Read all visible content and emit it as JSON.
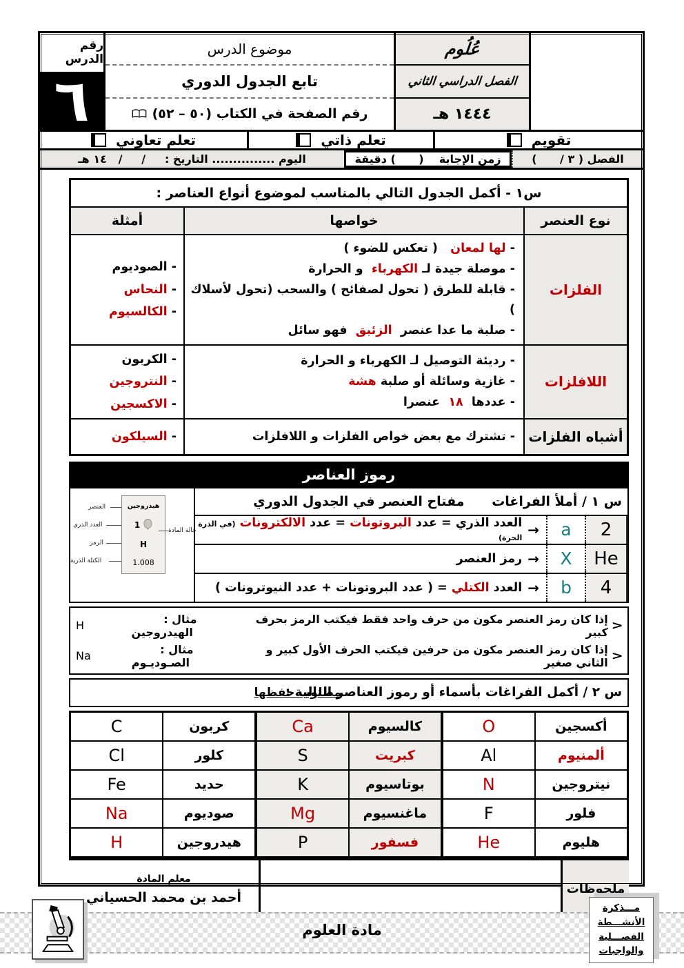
{
  "colors": {
    "answer_red": "#c00000",
    "key_teal": "#17807e"
  },
  "header": {
    "lesson_no_label": "رقم الدرس",
    "lesson_no": "٦",
    "topic_label": "موضوع الدرس",
    "topic_value": "تابع الجدول الدوري",
    "page_ref": "رقم الصفحة في الكتاب (٥٠ – ٥٢)",
    "subject_calligraphy": "عُلُوم",
    "term_calligraphy": "الفصل الدراسي الثاني",
    "year": "١٤٤٤ هـ"
  },
  "modes": {
    "assessment": "تقويم",
    "self": "تعلم ذاتي",
    "cooperative": "تعلم تعاوني"
  },
  "meta": {
    "chapter": "الفصل  ( ٣ /      )",
    "time": "زمن الإجابة    (      ) دقيقة",
    "day_date": "اليوم ............... التاريخ :     /     /   ١٤ هـ"
  },
  "q1": {
    "title": "س١ -  أكمل الجدول التالي بالمناسب لموضوع أنواع العناصر :",
    "headers": {
      "type": "نوع العنصر",
      "props": "خواصها",
      "examples": "أمثلة"
    },
    "rows": [
      {
        "type": [
          {
            "t": "الفلزات",
            "c": "red"
          }
        ],
        "props": [
          [
            {
              "t": "- "
            },
            {
              "t": "لها لمعان",
              "c": "red"
            },
            {
              "t": "   ( تعكس للضوء )"
            }
          ],
          [
            {
              "t": "- موصلة جيدة  لـ "
            },
            {
              "t": "الكهرباء",
              "c": "red"
            },
            {
              "t": "  و الحرارة"
            }
          ],
          [
            {
              "t": "- قابلة للطرق ( تحول لصفائح ) والسحب (تحول لأسلاك )"
            }
          ],
          [
            {
              "t": "- صلبة ما عدا عنصر  "
            },
            {
              "t": "الزئبق",
              "c": "red"
            },
            {
              "t": "  فهو سائل"
            }
          ]
        ],
        "examples": [
          [
            {
              "t": "- الصوديوم"
            }
          ],
          [
            {
              "t": "- "
            },
            {
              "t": "النحاس",
              "c": "red"
            }
          ],
          [
            {
              "t": "- "
            },
            {
              "t": "الكالسيوم",
              "c": "red"
            }
          ]
        ]
      },
      {
        "type": [
          {
            "t": "اللافلزات",
            "c": "red"
          }
        ],
        "props": [
          [
            {
              "t": "- رديئة التوصيل لـ  الكهرباء  و  الحرارة"
            }
          ],
          [
            {
              "t": "- غازية وسائلة  أو صلبة "
            },
            {
              "t": "هشة",
              "c": "red"
            }
          ],
          [
            {
              "t": "- عددها  "
            },
            {
              "t": "١٨",
              "c": "red"
            },
            {
              "t": "  عنصرا"
            }
          ]
        ],
        "examples": [
          [
            {
              "t": "- الكربون"
            }
          ],
          [
            {
              "t": "- "
            },
            {
              "t": "النتروجين",
              "c": "red"
            }
          ],
          [
            {
              "t": "- "
            },
            {
              "t": "الاكسجين",
              "c": "red"
            }
          ]
        ]
      },
      {
        "type": [
          {
            "t": "أشباه الفلزات"
          }
        ],
        "props": [
          [
            {
              "t": "- تشترك مع بعض  خواص الفلزات و اللافلزات"
            }
          ]
        ],
        "examples": [
          [
            {
              "t": "- "
            },
            {
              "t": "السيلكون",
              "c": "red"
            }
          ]
        ]
      }
    ]
  },
  "symbols": {
    "banner": "رموز العناصر",
    "q_label": "س ١ /  أملأ الفراغات      مفتاح العنصر في الجدول الدوري",
    "arrow": "→",
    "key_rows": [
      {
        "text": [
          {
            "t": "العدد الذري  =  عدد "
          },
          {
            "t": "البروتونات",
            "c": "red"
          },
          {
            "t": " = عدد "
          },
          {
            "t": "الالكترونات",
            "c": "red"
          },
          {
            "t": " ",
            "c": ""
          },
          {
            "t": "(في الذرة الحرة)",
            "s": true
          }
        ],
        "letter": "a",
        "value": "2"
      },
      {
        "text": [
          {
            "t": "رمز العنصر"
          }
        ],
        "letter": "X",
        "value": "He"
      },
      {
        "text": [
          {
            "t": "العدد "
          },
          {
            "t": "الكتلي",
            "c": "red"
          },
          {
            "t": "  = ( عدد البروتونات + عدد النيوترونات )"
          }
        ],
        "letter": "b",
        "value": "4"
      }
    ],
    "diagram": {
      "element_name": "هيدروجين",
      "atomic_number": "1",
      "symbol": "H",
      "atomic_mass": "1.008",
      "labels": {
        "element": "العنصر",
        "atomic_number": "العدد الذري",
        "symbol": "الرمز",
        "atomic_mass": "الكتلة الذرية",
        "state": "حالة المادة"
      }
    },
    "notes": [
      {
        "bullet": "<",
        "text": "إذا كان رمز العنصر مكون من حرف واحد فقط فيكتب الرمز بحرف كبير",
        "example": "مثال :  الهيدروجين",
        "symbol": "H"
      },
      {
        "bullet": "<",
        "text": "إذا كان رمز العنصر مكون من حرفين فيكتب  الحرف الأول كبير و الثاني صغير",
        "example": "مثال :  الصـوديـوم",
        "symbol": "Na"
      }
    ]
  },
  "q2": {
    "title": "س ٢ / أكمل الفراغات  بأسماء أو رموز العناصر التالية :",
    "memorize_note": "مطلوب حفظها",
    "rows": [
      [
        {
          "n": "أكسجين",
          "s": "O",
          "sc": "red"
        },
        {
          "n": "كالسيوم",
          "s": "Ca",
          "sc": "red"
        },
        {
          "n": "كربون",
          "s": "C"
        }
      ],
      [
        {
          "n": "ألمنيوم",
          "nc": "red",
          "s": "Al"
        },
        {
          "n": "كبريت",
          "nc": "red",
          "s": "S"
        },
        {
          "n": "كلور",
          "s": "Cl"
        }
      ],
      [
        {
          "n": "نيتروجين",
          "s": "N",
          "sc": "red"
        },
        {
          "n": "بوتاسيوم",
          "s": "K"
        },
        {
          "n": "حديد",
          "s": "Fe"
        }
      ],
      [
        {
          "n": "فلور",
          "s": "F"
        },
        {
          "n": "ماغنسيوم",
          "s": "Mg",
          "sc": "red"
        },
        {
          "n": "صوديوم",
          "s": "Na",
          "sc": "red"
        }
      ],
      [
        {
          "n": "هليوم",
          "s": "He",
          "sc": "red"
        },
        {
          "n": "فسفور",
          "nc": "red",
          "s": "P"
        },
        {
          "n": "هيدروجين",
          "s": "H",
          "sc": "red"
        }
      ]
    ]
  },
  "footer": {
    "teacher_label": "معلم المادة",
    "teacher_name": "أحمد بن محمد الحسياني",
    "notes_label": "ملحوظات"
  },
  "bottom": {
    "subject_band": "مادة العلوم",
    "stamp_lines": [
      "مـــذكرة",
      "الأنشـــطة",
      "الفصـــلية",
      "والواجبات"
    ]
  }
}
